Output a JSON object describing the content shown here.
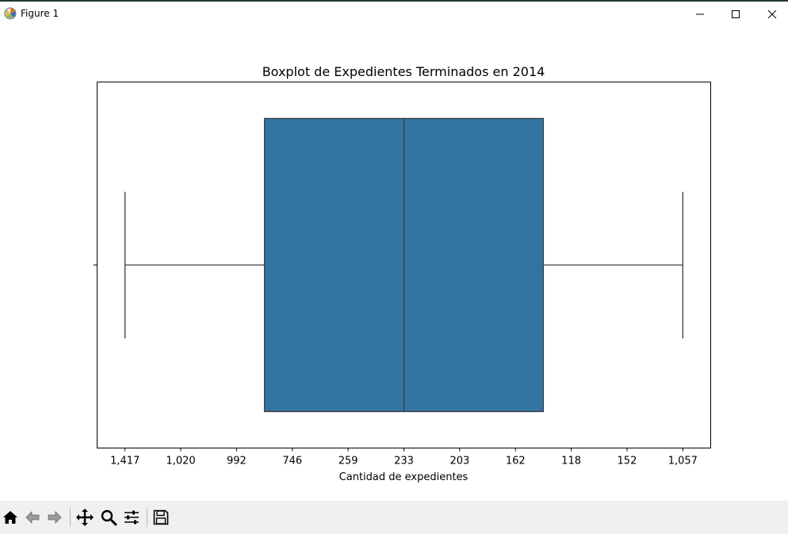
{
  "window": {
    "title": "Figure 1"
  },
  "toolbar": {
    "buttons": [
      "home-icon",
      "back-arrow-icon",
      "forward-arrow-icon",
      "pan-icon",
      "zoom-icon",
      "configure-subplots-icon",
      "save-icon"
    ]
  },
  "colors": {
    "box_fill": "#3274a1",
    "line": "#3d3d3d",
    "toolbar_bg": "#f0f0f0"
  },
  "chart_data": {
    "type": "box",
    "title": "Boxplot de Expedientes Terminados en 2014",
    "xlabel": "Cantidad de expedientes",
    "ylabel": "",
    "x_tick_labels": [
      "1,417",
      "1,020",
      "992",
      "746",
      "259",
      "233",
      "203",
      "162",
      "118",
      "152",
      "1,057"
    ],
    "x_positions": [
      0,
      1,
      2,
      3,
      4,
      5,
      6,
      7,
      8,
      9,
      10
    ],
    "xlim": [
      -0.5,
      10.5
    ],
    "box": {
      "whisker_low": 0,
      "q1": 2.5,
      "median": 5,
      "q3": 7.5,
      "whisker_high": 10
    },
    "grid": false,
    "legend": "none"
  }
}
